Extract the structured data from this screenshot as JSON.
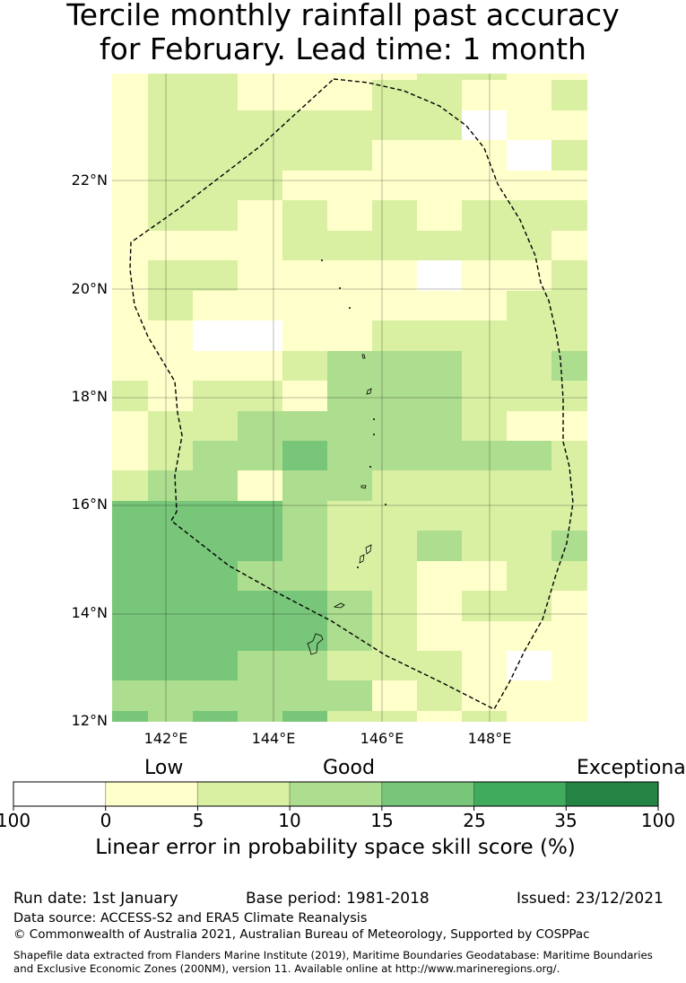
{
  "title": {
    "line1": "Tercile monthly rainfall past accuracy",
    "line2": "for February. Lead time: 1 month"
  },
  "map": {
    "lat_labels": [
      "22°N",
      "20°N",
      "18°N",
      "16°N",
      "14°N",
      "12°N"
    ],
    "lon_labels": [
      "142°E",
      "144°E",
      "146°E",
      "148°E"
    ],
    "category_colors": {
      "W": "#ffffff",
      "Y": "#ffffcc",
      "L": "#d9f0a3",
      "M": "#addd8e",
      "D": "#78c679",
      "E": "#41ab5d",
      "F": "#238443"
    },
    "grid_rows_north_to_south": [
      "YLLYYYYLLYY",
      "YLLYYYLLYYL",
      "YLLLLLLLWYY",
      "YLLLLLYYYWL",
      "YLLLYYYYYYY",
      "YLLYLYLYLLL",
      "YYYYLLLLLLY",
      "YLLYYYYWYYL",
      "YLYYYYYYYLL",
      "YYWWYYLLLLL",
      "YYYYLMMMLLM",
      "LYLLYMMMLLL",
      "YLLMMMMMLYY",
      "YLMMDMMMMML",
      "LMMYMMLLLLL",
      "DDDDMLLLLLL",
      "DDDDMLLMLLM",
      "DDDMMLLYYLL",
      "DDDDDMLYLLY",
      "DDDDDMLYYYY",
      "DDDMMLLLYWY",
      "MMMMMMYLYYY",
      "DMDMDLLYLYY"
    ]
  },
  "legend": {
    "categories": [
      "Low",
      "Good",
      "Exceptional"
    ],
    "bins": [
      {
        "label": "100",
        "color": "#ffffff"
      },
      {
        "label": "0",
        "color": "#ffffcc"
      },
      {
        "label": "5",
        "color": "#d9f0a3"
      },
      {
        "label": "10",
        "color": "#addd8e"
      },
      {
        "label": "15",
        "color": "#78c679"
      },
      {
        "label": "25",
        "color": "#41ab5d"
      },
      {
        "label": "35",
        "color": "#238443"
      }
    ],
    "last_tick": "100",
    "axis_label": "Linear error in probability space skill score (%)"
  },
  "footer": {
    "run_date": "Run date: 1st January",
    "base_period": "Base period: 1981-2018",
    "issued": "Issued: 23/12/2021",
    "data_source": "Data source: ACCESS-S2 and ERA5 Climate Reanalysis",
    "copyright": "© Commonwealth of Australia 2021, Australian Bureau of Meteorology, Supported by COSPPac",
    "shapefile_1": "Shapefile data extracted from Flanders Marine Institute (2019), Maritime Boundaries Geodatabase: Maritime Boundaries",
    "shapefile_2": "and Exclusive Economic Zones (200NM), version 11. Available online at http://www.marineregions.org/."
  }
}
